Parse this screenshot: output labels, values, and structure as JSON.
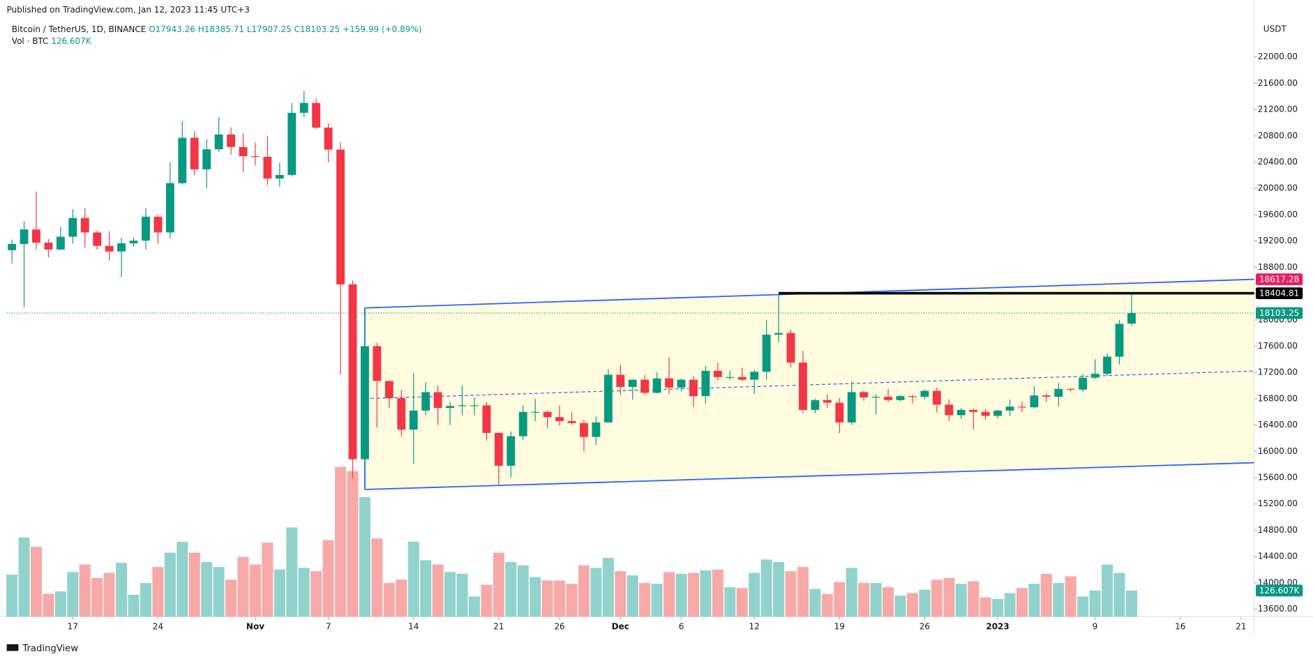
{
  "chart_data": {
    "type": "candlestick",
    "header": "Published on TradingView.com, Jan 12, 2023 11:45 UTC+3",
    "legend": {
      "symbol": "Bitcoin / TetherUS, 1D, BINANCE",
      "open": "O17943.26",
      "high": "H18385.71",
      "low": "L17907.25",
      "close": "C18103.25",
      "change": "+159.99 (+0.89%)",
      "volume_name": "Vol · BTC"
    },
    "axis_unit": "USDT",
    "footer": "TradingView",
    "up_color": "#089981",
    "down_color": "#f23645",
    "candles": {
      "open": [
        19060,
        19155,
        19375,
        19175,
        19070,
        19265,
        19550,
        19330,
        19125,
        19040,
        19165,
        19205,
        19570,
        19330,
        20080,
        20770,
        20290,
        20595,
        20820,
        20630,
        20490,
        20480,
        20150,
        20205,
        21150,
        21300,
        20925,
        20590,
        18540,
        15880,
        17600,
        17070,
        16810,
        16330,
        16620,
        16900,
        16660,
        16690,
        16700,
        16700,
        16280,
        15780,
        16230,
        16600,
        16600,
        16520,
        16460,
        16430,
        16220,
        16440,
        17165,
        16980,
        17090,
        16890,
        17110,
        16970,
        17090,
        16840,
        17225,
        17130,
        17130,
        17090,
        17210,
        17775,
        17800,
        17350,
        16630,
        16780,
        16740,
        16440,
        16900,
        16820,
        16830,
        16780,
        16840,
        16830,
        16920,
        16710,
        16550,
        16630,
        16600,
        16540,
        16620,
        16680,
        16670,
        16850,
        16830,
        16950,
        16940,
        17120,
        17180,
        17440,
        17943.26
      ],
      "high": [
        19220,
        19500,
        19950,
        19230,
        19420,
        19680,
        19700,
        19360,
        19350,
        19250,
        19250,
        19700,
        19600,
        20400,
        21020,
        20870,
        20750,
        21085,
        20930,
        20840,
        20700,
        20800,
        20390,
        21300,
        21480,
        21365,
        20990,
        20700,
        18600,
        18150,
        17650,
        17070,
        16930,
        17190,
        17050,
        17000,
        16750,
        17000,
        16820,
        16750,
        16290,
        16300,
        16700,
        16800,
        16620,
        16700,
        16600,
        16480,
        16530,
        17250,
        17320,
        17100,
        17160,
        17200,
        17430,
        17110,
        17140,
        17300,
        17350,
        17230,
        17270,
        17240,
        18000,
        18390,
        17850,
        17530,
        16800,
        16870,
        16810,
        17060,
        16920,
        16870,
        16950,
        16860,
        16860,
        16940,
        16970,
        16790,
        16660,
        16650,
        16640,
        16630,
        16790,
        16760,
        16990,
        16880,
        17040,
        16960,
        17180,
        17400,
        17490,
        18000,
        18385.71
      ],
      "low": [
        18860,
        18190,
        19070,
        18950,
        19065,
        19160,
        19100,
        19070,
        18900,
        18650,
        19115,
        19070,
        19160,
        19240,
        20060,
        20200,
        20000,
        20555,
        20515,
        20250,
        20350,
        20050,
        20030,
        20180,
        21080,
        20900,
        20400,
        17170,
        15590,
        15760,
        16360,
        16660,
        16230,
        15815,
        16550,
        16400,
        16400,
        16550,
        16550,
        16160,
        15480,
        15600,
        16170,
        16460,
        16350,
        16390,
        16400,
        16000,
        16100,
        16440,
        16860,
        16790,
        16860,
        16880,
        16870,
        16910,
        16680,
        16730,
        17080,
        17090,
        17070,
        16875,
        17090,
        17660,
        17280,
        16580,
        16580,
        16660,
        16280,
        16400,
        16770,
        16560,
        16750,
        16760,
        16730,
        16790,
        16590,
        16460,
        16490,
        16330,
        16480,
        16500,
        16540,
        16600,
        16660,
        16750,
        16680,
        16910,
        16910,
        17100,
        17150,
        17320,
        17907.25
      ],
      "close": [
        19155,
        19375,
        19175,
        19070,
        19265,
        19550,
        19330,
        19125,
        19040,
        19165,
        19205,
        19570,
        19330,
        20080,
        20770,
        20290,
        20595,
        20820,
        20630,
        20490,
        20480,
        20150,
        20205,
        21150,
        21300,
        20925,
        20590,
        18540,
        15880,
        17600,
        17070,
        16810,
        16330,
        16620,
        16900,
        16660,
        16690,
        16700,
        16700,
        16280,
        15780,
        16230,
        16600,
        16600,
        16520,
        16460,
        16430,
        16220,
        16440,
        17165,
        16980,
        17090,
        16890,
        17110,
        16970,
        17090,
        16840,
        17225,
        17130,
        17130,
        17090,
        17210,
        17775,
        17800,
        17350,
        16630,
        16780,
        16740,
        16440,
        16900,
        16820,
        16830,
        16780,
        16840,
        16830,
        16920,
        16710,
        16550,
        16630,
        16600,
        16540,
        16620,
        16680,
        16670,
        16850,
        16830,
        16950,
        16940,
        17120,
        17180,
        17440,
        17940,
        18103.25
      ]
    },
    "volume": {
      "values": [
        204000,
        383500,
        338600,
        110200,
        122400,
        216200,
        253000,
        187700,
        212200,
        261100,
        106100,
        163200,
        240700,
        310100,
        363100,
        310100,
        265200,
        240700,
        179500,
        289700,
        253000,
        359000,
        228500,
        432500,
        236600,
        220300,
        371300,
        726200,
        705800,
        579400,
        379400,
        163200,
        179500,
        363100,
        273400,
        253000,
        216200,
        208100,
        97900,
        155000,
        310100,
        265200,
        248900,
        191800,
        175400,
        175400,
        159100,
        248900,
        236600,
        285600,
        220300,
        199900,
        163200,
        159100,
        216200,
        208100,
        212200,
        224400,
        228500,
        142800,
        138700,
        212200,
        277400,
        265200,
        220300,
        240700,
        134600,
        110200,
        167300,
        236600,
        163200,
        163200,
        142800,
        102000,
        114200,
        130600,
        179500,
        187700,
        159100,
        171400,
        93800,
        85700,
        114200,
        138700,
        159100,
        208100,
        163200,
        195800,
        97900,
        126500,
        253000,
        212200,
        126607
      ],
      "last_label": "126.607K",
      "up_color": "rgba(38,166,154,0.5)",
      "down_color": "rgba(239,83,80,0.5)"
    },
    "xlim": [
      -0.43,
      102.07
    ],
    "xticks": [
      {
        "value": 5,
        "label": "17"
      },
      {
        "value": 12,
        "label": "24"
      },
      {
        "value": 20,
        "label": "Nov"
      },
      {
        "value": 26,
        "label": "7"
      },
      {
        "value": 33,
        "label": "14"
      },
      {
        "value": 40,
        "label": "21"
      },
      {
        "value": 45,
        "label": "26"
      },
      {
        "value": 50,
        "label": "Dec"
      },
      {
        "value": 55,
        "label": "6"
      },
      {
        "value": 61,
        "label": "12"
      },
      {
        "value": 68,
        "label": "19"
      },
      {
        "value": 75,
        "label": "26"
      },
      {
        "value": 81,
        "label": "2023"
      },
      {
        "value": 89,
        "label": "9"
      },
      {
        "value": 96,
        "label": "16"
      },
      {
        "value": 101,
        "label": "21"
      }
    ],
    "ylim": [
      13485,
      22510
    ],
    "yticks": [
      {
        "value": 13600,
        "label": "13600.00"
      },
      {
        "value": 14000,
        "label": "14000.00"
      },
      {
        "value": 14400,
        "label": "14400.00"
      },
      {
        "value": 14800,
        "label": "14800.00"
      },
      {
        "value": 15200,
        "label": "15200.00"
      },
      {
        "value": 15600,
        "label": "15600.00"
      },
      {
        "value": 16000,
        "label": "16000.00"
      },
      {
        "value": 16400,
        "label": "16400.00"
      },
      {
        "value": 16800,
        "label": "16800.00"
      },
      {
        "value": 17200,
        "label": "17200.00"
      },
      {
        "value": 17600,
        "label": "17600.00"
      },
      {
        "value": 18000,
        "label": "18000.00"
      },
      {
        "value": 18400,
        "label": "18400.00"
      },
      {
        "value": 18800,
        "label": "18800.00"
      },
      {
        "value": 19200,
        "label": "19200.00"
      },
      {
        "value": 19600,
        "label": "19600.00"
      },
      {
        "value": 20000,
        "label": "20000.00"
      },
      {
        "value": 20400,
        "label": "20400.00"
      },
      {
        "value": 20800,
        "label": "20800.00"
      },
      {
        "value": 21200,
        "label": "21200.00"
      },
      {
        "value": 21600,
        "label": "21600.00"
      },
      {
        "value": 22000,
        "label": "22000.00"
      }
    ],
    "grid": false,
    "channel": {
      "start": 29,
      "upper": [
        18182,
        18617.28
      ],
      "lower": [
        15420,
        15827
      ],
      "line_color": "#2962ff",
      "fill": "rgba(255,235,59,0.16)"
    },
    "hline": {
      "start": 63,
      "value": 18404.81,
      "color": "#000000"
    },
    "price_tags": [
      {
        "value": 18617.28,
        "label": "18617.28",
        "color": "#e91e63"
      },
      {
        "value": 18404.81,
        "label": "18404.81",
        "color": "#000000"
      },
      {
        "value": 18103.25,
        "label": "18103.25",
        "color": "#089981"
      }
    ]
  }
}
